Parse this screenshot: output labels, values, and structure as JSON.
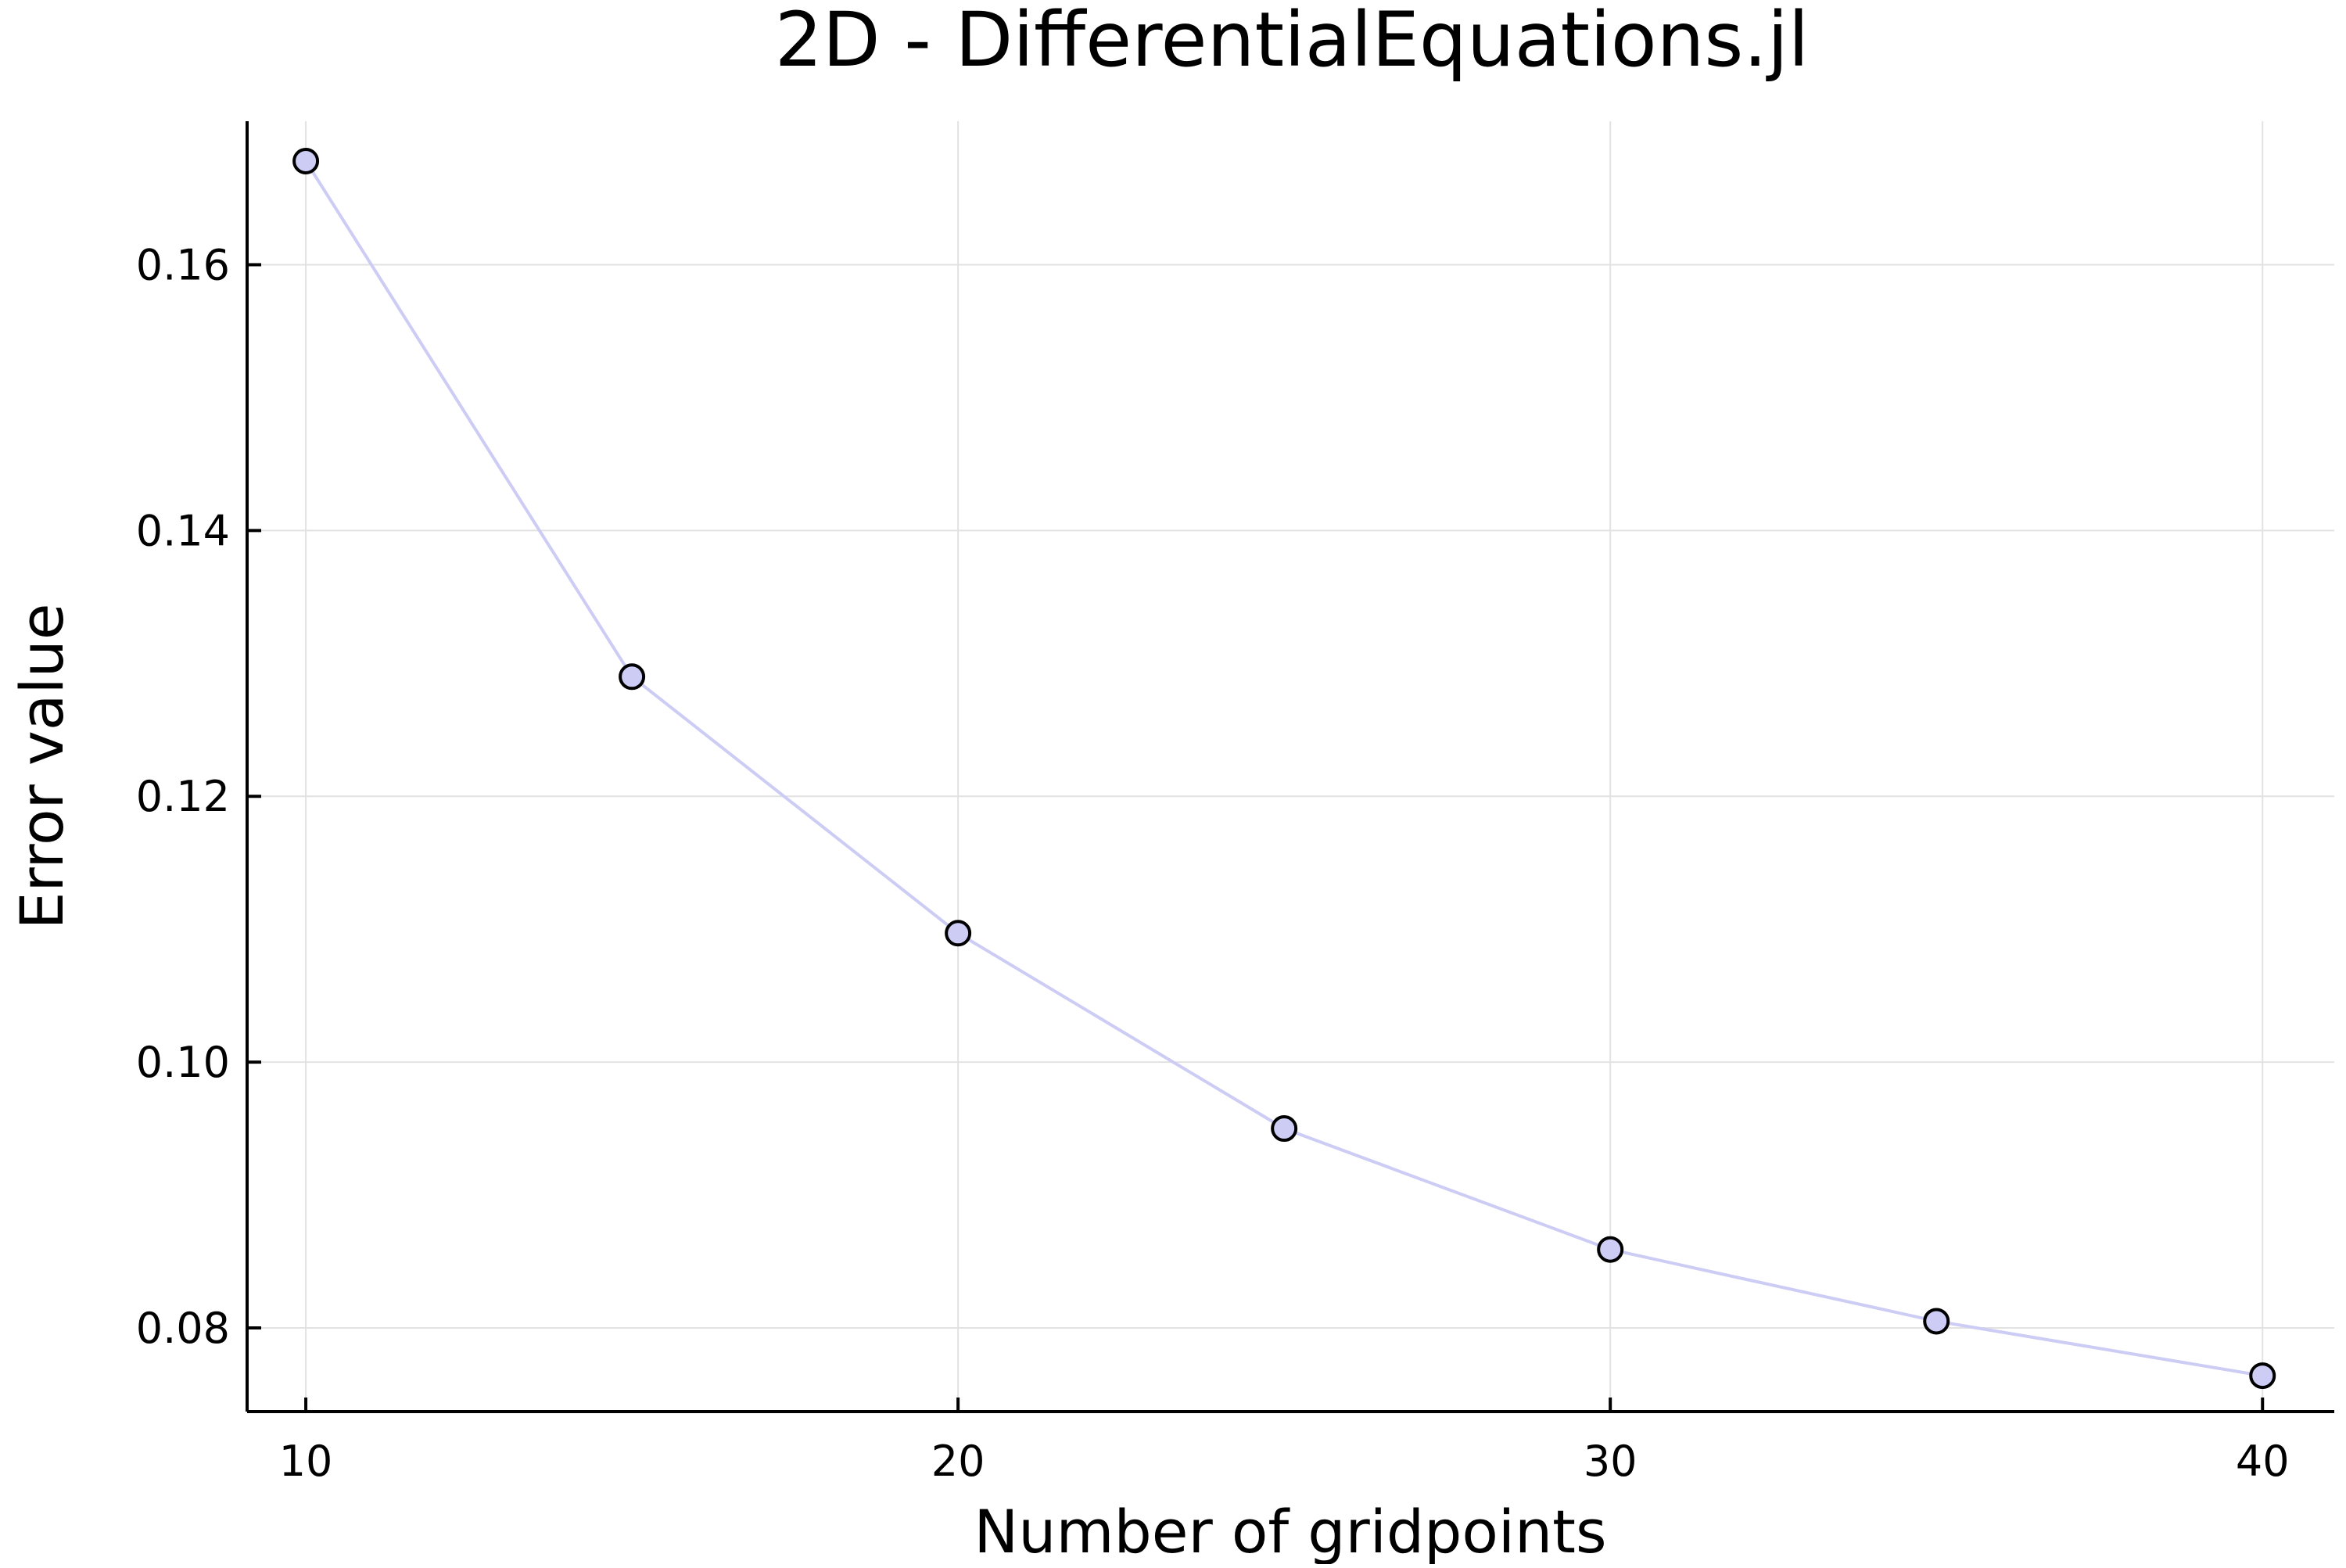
{
  "chart_data": {
    "type": "line",
    "title": "2D - DifferentialEquations.jl",
    "xlabel": "Number of gridpoints",
    "ylabel": "Error value",
    "xlim": [
      9.1,
      41.1
    ],
    "ylim": [
      0.0737,
      0.1708
    ],
    "xticks": [
      10,
      20,
      30,
      40
    ],
    "xtick_labels": [
      "10",
      "20",
      "30",
      "40"
    ],
    "yticks": [
      0.08,
      0.1,
      0.12,
      0.14,
      0.16
    ],
    "ytick_labels": [
      "0.08",
      "0.10",
      "0.12",
      "0.14",
      "0.16"
    ],
    "grid": true,
    "legend": "none",
    "series": [
      {
        "color": "#ccccf5",
        "x": [
          10,
          15,
          20,
          25,
          30,
          35,
          40
        ],
        "values": [
          0.1678,
          0.129,
          0.1097,
          0.095,
          0.0859,
          0.0805,
          0.0764
        ]
      }
    ]
  }
}
